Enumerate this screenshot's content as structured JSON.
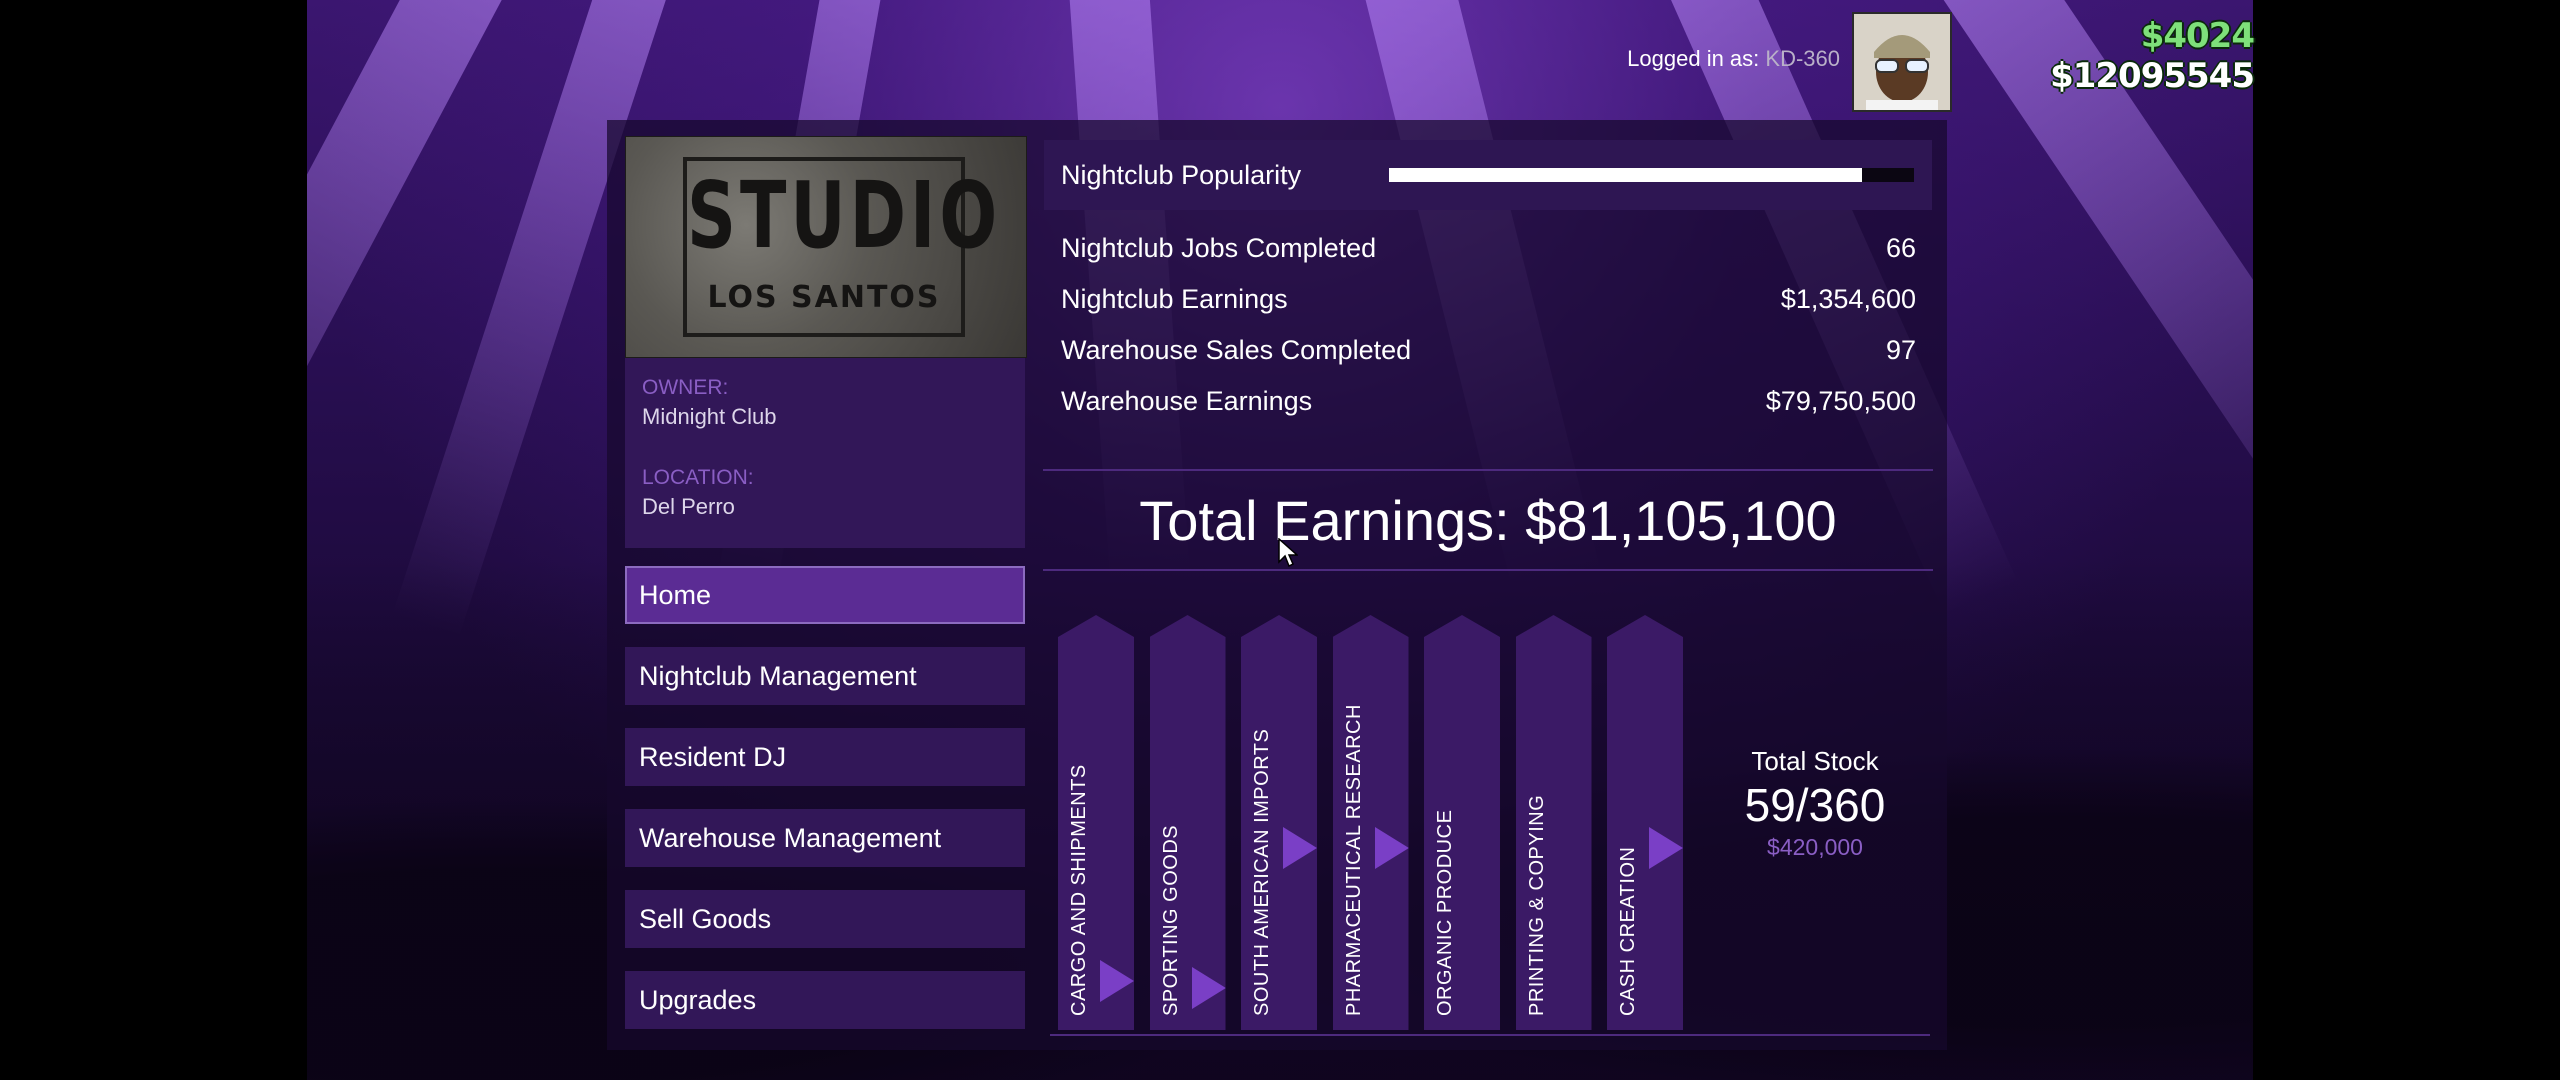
{
  "header": {
    "logged_in_prefix": "Logged in as:",
    "username": "KD-360",
    "cash": "$4024",
    "bank": "$12095545"
  },
  "business": {
    "logo_line1": "STUDIO",
    "logo_line2": "LOS SANTOS",
    "owner_label": "OWNER:",
    "owner_value": "Midnight Club",
    "location_label": "LOCATION:",
    "location_value": "Del Perro"
  },
  "nav": [
    {
      "label": "Home",
      "active": true
    },
    {
      "label": "Nightclub Management",
      "active": false
    },
    {
      "label": "Resident DJ",
      "active": false
    },
    {
      "label": "Warehouse Management",
      "active": false
    },
    {
      "label": "Sell Goods",
      "active": false
    },
    {
      "label": "Upgrades",
      "active": false
    }
  ],
  "stats": {
    "popularity_label": "Nightclub Popularity",
    "popularity_fraction": 0.9,
    "rows": [
      {
        "label": "Nightclub Jobs Completed",
        "value": "66"
      },
      {
        "label": "Nightclub Earnings",
        "value": "$1,354,600"
      },
      {
        "label": "Warehouse Sales Completed",
        "value": "97"
      },
      {
        "label": "Warehouse Earnings",
        "value": "$79,750,500"
      }
    ]
  },
  "total_earnings": "Total Earnings: $81,105,100",
  "stock": {
    "categories": [
      {
        "label": "CARGO AND SHIPMENTS",
        "level": 0.08
      },
      {
        "label": "SPORTING GOODS",
        "level": 0.06
      },
      {
        "label": "SOUTH AMERICAN IMPORTS",
        "level": 0.45
      },
      {
        "label": "PHARMACEUTICAL RESEARCH",
        "level": 0.45
      },
      {
        "label": "ORGANIC PRODUCE",
        "level": 0
      },
      {
        "label": "PRINTING & COPYING",
        "level": 0
      },
      {
        "label": "CASH CREATION",
        "level": 0.45
      }
    ],
    "total_title": "Total Stock",
    "total_count": "59/360",
    "total_value": "$420,000"
  },
  "colors": {
    "accent": "#7a3fc6",
    "panel": "#321758",
    "cash_green": "#7ee07a"
  }
}
